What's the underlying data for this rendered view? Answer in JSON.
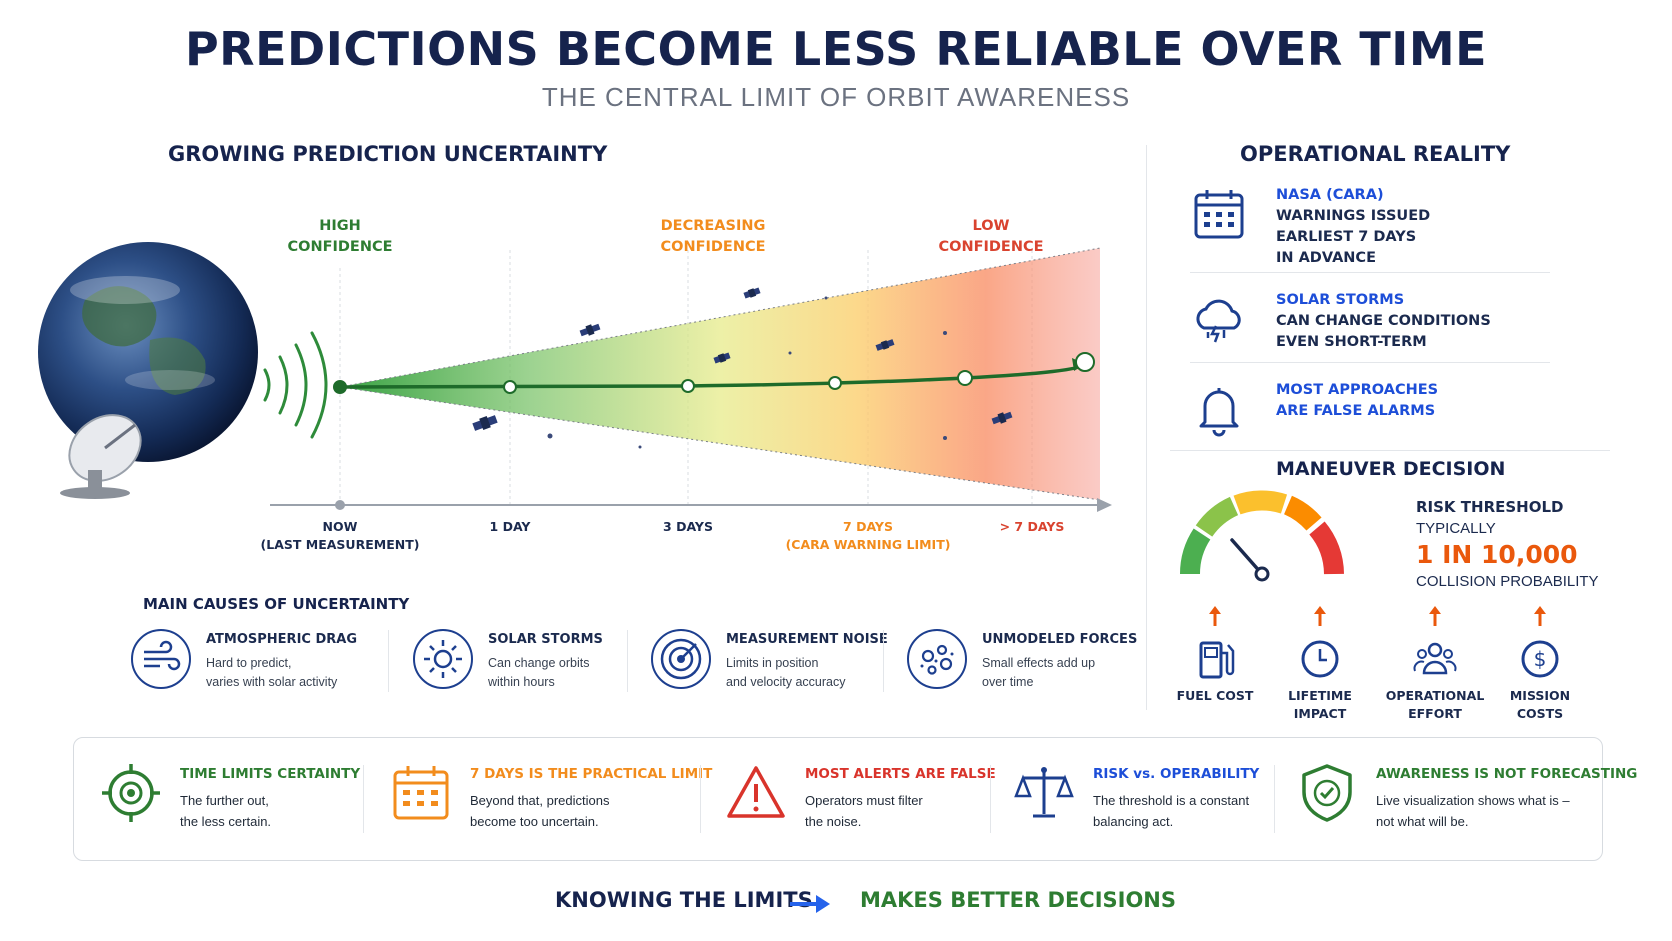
{
  "header": {
    "title": "PREDICTIONS BECOME LESS RELIABLE OVER TIME",
    "subtitle": "THE CENTRAL LIMIT OF ORBIT AWARENESS"
  },
  "uncertainty": {
    "heading": "GROWING PREDICTION UNCERTAINTY",
    "confidence": [
      {
        "line1": "HIGH",
        "line2": "CONFIDENCE",
        "color": "#2e7d32"
      },
      {
        "line1": "DECREASING",
        "line2": "CONFIDENCE",
        "color": "#f28c1d"
      },
      {
        "line1": "LOW",
        "line2": "CONFIDENCE",
        "color": "#d9432f"
      }
    ],
    "ticks": [
      {
        "line1": "NOW",
        "line2": "(LAST MEASUREMENT)",
        "color": "#1b2a4e"
      },
      {
        "line1": "1 DAY",
        "line2": "",
        "color": "#1b2a4e"
      },
      {
        "line1": "3 DAYS",
        "line2": "",
        "color": "#1b2a4e"
      },
      {
        "line1": "7 DAYS",
        "line2": "(CARA WARNING LIMIT)",
        "color": "#f28c1d"
      },
      {
        "line1": "> 7 DAYS",
        "line2": "",
        "color": "#d9432f"
      }
    ]
  },
  "operational": {
    "heading": "OPERATIONAL REALITY",
    "items": [
      {
        "icon": "calendar-icon",
        "line1": "NASA (CARA)",
        "line2": "WARNINGS ISSUED",
        "line3": "EARLIEST 7 DAYS",
        "line4": "IN ADVANCE"
      },
      {
        "icon": "storm-cloud-icon",
        "line1": "SOLAR STORMS",
        "line2": "CAN CHANGE CONDITIONS",
        "line3": "EVEN SHORT-TERM",
        "line4": ""
      },
      {
        "icon": "bell-icon",
        "line1": "MOST APPROACHES",
        "line2": "ARE FALSE ALARMS",
        "line3": "",
        "line4": ""
      }
    ]
  },
  "maneuver": {
    "heading": "MANEUVER DECISION",
    "risk_heading": "RISK THRESHOLD",
    "risk_typically": "TYPICALLY",
    "risk_value": "1 IN 10,000",
    "risk_unit": "COLLISION PROBABILITY",
    "costs": [
      {
        "icon": "fuel-pump-icon",
        "line1": "FUEL COST",
        "line2": ""
      },
      {
        "icon": "clock-icon",
        "line1": "LIFETIME",
        "line2": "IMPACT"
      },
      {
        "icon": "people-icon",
        "line1": "OPERATIONAL",
        "line2": "EFFORT"
      },
      {
        "icon": "dollar-coin-icon",
        "line1": "MISSION",
        "line2": "COSTS"
      }
    ]
  },
  "causes": {
    "heading": "MAIN CAUSES OF UNCERTAINTY",
    "items": [
      {
        "icon": "wind-icon",
        "title": "ATMOSPHERIC DRAG",
        "line1": "Hard to predict,",
        "line2": "varies with solar activity"
      },
      {
        "icon": "sun-icon",
        "title": "SOLAR STORMS",
        "line1": "Can change orbits",
        "line2": "within hours"
      },
      {
        "icon": "target-icon",
        "title": "MEASUREMENT NOISE",
        "line1": "Limits in position",
        "line2": "and velocity accuracy"
      },
      {
        "icon": "particles-icon",
        "title": "UNMODELED FORCES",
        "line1": "Small effects add up",
        "line2": "over time"
      }
    ]
  },
  "takeaways": [
    {
      "icon": "crosshair-icon",
      "title": "TIME LIMITS CERTAINTY",
      "line1": "The further out,",
      "line2": "the less certain.",
      "color": "#2e7d32"
    },
    {
      "icon": "calendar-icon",
      "title": "7 DAYS IS THE PRACTICAL LIMIT",
      "line1": "Beyond that, predictions",
      "line2": "become too uncertain.",
      "color": "#f28c1d"
    },
    {
      "icon": "warning-icon",
      "title": "MOST ALERTS ARE FALSE",
      "line1": "Operators must filter",
      "line2": "the noise.",
      "color": "#d9342b"
    },
    {
      "icon": "scales-icon",
      "title": "RISK vs. OPERABILITY",
      "line1": "The threshold is a constant",
      "line2": "balancing act.",
      "color": "#1d4ed8"
    },
    {
      "icon": "shield-check-icon",
      "title": "AWARENESS IS NOT FORECASTING",
      "line1": "Live visualization shows what is –",
      "line2": "not what will be.",
      "color": "#2e7d32"
    }
  ],
  "footer": {
    "left": "KNOWING THE LIMITS",
    "right": "MAKES BETTER DECISIONS",
    "left_color": "#16234d",
    "right_color": "#2e7d32"
  }
}
